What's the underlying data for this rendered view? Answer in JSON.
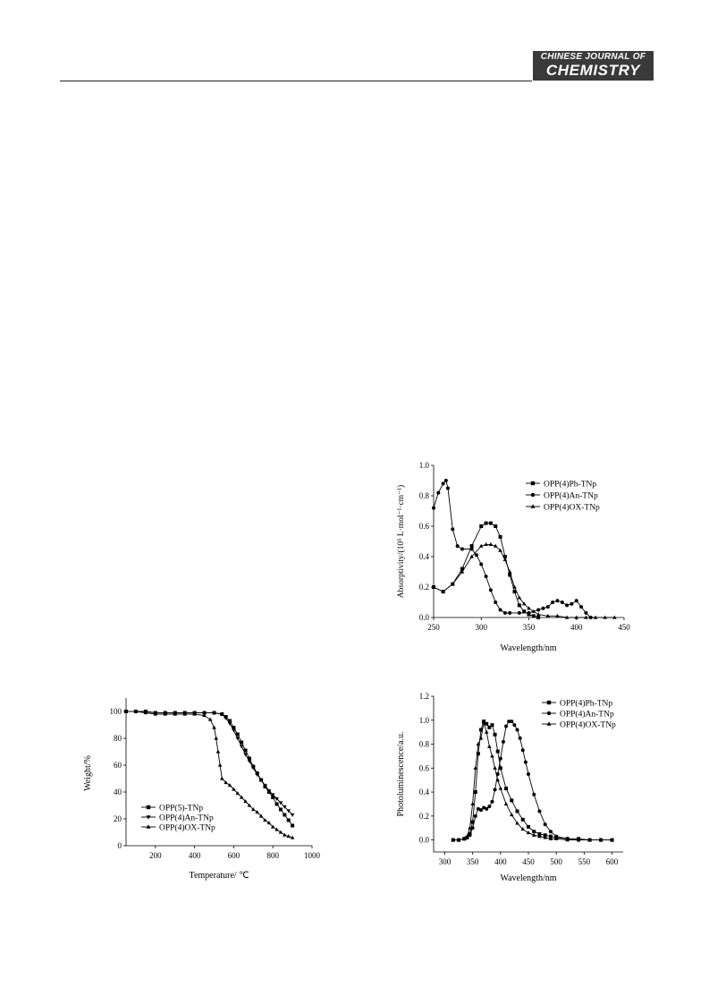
{
  "header": {
    "journal_line1": "CHINESE JOURNAL OF",
    "journal_line2": "CHEMISTRY"
  },
  "chart_data": [
    {
      "type": "line",
      "xlabel": "Wavelength/nm",
      "ylabel": "Absorptivity/(10⁵ L·mol⁻¹·cm⁻¹)",
      "xlim": [
        250,
        450
      ],
      "ylim": [
        0,
        1.0
      ],
      "xticks": [
        "250",
        "300",
        "350",
        "400",
        "450"
      ],
      "yticks": [
        "0.0",
        "0.2",
        "0.4",
        "0.6",
        "0.8",
        "1.0"
      ],
      "legend_position": "top-right",
      "series": [
        {
          "name": "OPP(4)Ph-TNp",
          "marker": "square",
          "x": [
            250,
            260,
            270,
            280,
            290,
            300,
            305,
            310,
            315,
            320,
            325,
            330,
            335,
            340,
            345,
            350,
            355,
            360
          ],
          "y": [
            0.2,
            0.17,
            0.22,
            0.32,
            0.47,
            0.6,
            0.62,
            0.62,
            0.6,
            0.53,
            0.4,
            0.28,
            0.17,
            0.08,
            0.04,
            0.02,
            0.01,
            0.0
          ]
        },
        {
          "name": "OPP(4)An-TNp",
          "marker": "circle",
          "x": [
            250,
            255,
            260,
            263,
            265,
            270,
            275,
            280,
            290,
            295,
            300,
            305,
            310,
            315,
            320,
            325,
            330,
            340,
            350,
            360,
            365,
            370,
            375,
            380,
            385,
            390,
            395,
            400,
            405,
            410,
            415
          ],
          "y": [
            0.72,
            0.82,
            0.88,
            0.9,
            0.85,
            0.58,
            0.47,
            0.45,
            0.45,
            0.41,
            0.35,
            0.27,
            0.18,
            0.1,
            0.05,
            0.03,
            0.03,
            0.03,
            0.03,
            0.05,
            0.06,
            0.07,
            0.1,
            0.11,
            0.1,
            0.08,
            0.09,
            0.11,
            0.07,
            0.03,
            0.0
          ]
        },
        {
          "name": "OPP(4)OX-TNp",
          "marker": "triangle",
          "x": [
            250,
            260,
            270,
            280,
            290,
            300,
            305,
            310,
            315,
            320,
            325,
            330,
            335,
            340,
            345,
            350,
            355,
            360,
            370,
            380,
            390,
            400,
            410,
            420,
            430,
            440
          ],
          "y": [
            0.2,
            0.17,
            0.22,
            0.3,
            0.4,
            0.47,
            0.48,
            0.48,
            0.47,
            0.44,
            0.38,
            0.3,
            0.2,
            0.13,
            0.09,
            0.06,
            0.04,
            0.02,
            0.01,
            0.01,
            0.0,
            0.0,
            0.0,
            0.0,
            0.0,
            0.0
          ]
        }
      ]
    },
    {
      "type": "line",
      "xlabel": "Temperature/ ℃",
      "ylabel": "Weight/%",
      "xlim": [
        50,
        1000
      ],
      "ylim": [
        0,
        110
      ],
      "xticks": [
        "200",
        "400",
        "600",
        "800",
        "1000"
      ],
      "yticks": [
        "0",
        "20",
        "40",
        "60",
        "80",
        "100"
      ],
      "legend_position": "bottom-left",
      "series": [
        {
          "name": "OPP(5)-TNp",
          "marker": "square",
          "x": [
            50,
            100,
            150,
            200,
            250,
            300,
            350,
            400,
            450,
            500,
            540,
            560,
            580,
            600,
            620,
            640,
            660,
            680,
            700,
            720,
            740,
            760,
            780,
            800,
            820,
            840,
            860,
            880,
            900
          ],
          "y": [
            100,
            100,
            100,
            99,
            99,
            99,
            99,
            99,
            99,
            99,
            98,
            96,
            93,
            88,
            83,
            77,
            71,
            65,
            59,
            54,
            49,
            44,
            40,
            36,
            31,
            27,
            23,
            19,
            15
          ]
        },
        {
          "name": "OPP(4)An-TNp",
          "marker": "triangle-down",
          "x": [
            50,
            100,
            150,
            200,
            250,
            300,
            350,
            400,
            450,
            500,
            540,
            560,
            580,
            600,
            620,
            640,
            660,
            680,
            700,
            720,
            740,
            760,
            780,
            800,
            820,
            840,
            860,
            880,
            900
          ],
          "y": [
            100,
            100,
            100,
            99,
            99,
            99,
            99,
            99,
            99,
            99,
            98,
            95,
            91,
            86,
            80,
            74,
            68,
            63,
            58,
            53,
            49,
            45,
            41,
            38,
            35,
            32,
            29,
            26,
            23
          ]
        },
        {
          "name": "OPP(4)OX-TNp",
          "marker": "triangle",
          "x": [
            50,
            100,
            150,
            200,
            250,
            300,
            350,
            400,
            450,
            480,
            500,
            510,
            520,
            530,
            540,
            560,
            580,
            600,
            620,
            640,
            660,
            680,
            700,
            720,
            740,
            760,
            780,
            800,
            820,
            840,
            860,
            880,
            900
          ],
          "y": [
            100,
            100,
            99,
            98,
            98,
            98,
            98,
            98,
            97,
            94,
            88,
            80,
            70,
            60,
            50,
            47,
            45,
            42,
            39,
            36,
            33,
            30,
            27,
            25,
            22,
            19,
            17,
            14,
            12,
            10,
            8,
            7,
            6
          ]
        }
      ]
    },
    {
      "type": "line",
      "xlabel": "Wavelength/nm",
      "ylabel": "Photoluminescence/a.u.",
      "xlim": [
        280,
        620
      ],
      "ylim": [
        -0.1,
        1.2
      ],
      "xticks": [
        "300",
        "350",
        "400",
        "450",
        "500",
        "550",
        "600"
      ],
      "yticks": [
        "0.0",
        "0.2",
        "0.4",
        "0.6",
        "0.8",
        "1.0",
        "1.2"
      ],
      "legend_position": "top-right",
      "series": [
        {
          "name": "OPP(4)Ph-TNp",
          "marker": "square",
          "x": [
            315,
            325,
            335,
            340,
            345,
            350,
            355,
            360,
            365,
            370,
            375,
            380,
            385,
            390,
            395,
            400,
            410,
            420,
            430,
            440,
            450,
            460,
            470,
            480,
            490,
            500,
            520,
            540,
            560,
            580,
            600
          ],
          "y": [
            0.0,
            0.0,
            0.01,
            0.02,
            0.05,
            0.15,
            0.4,
            0.72,
            0.92,
            0.99,
            0.97,
            0.94,
            0.96,
            0.88,
            0.74,
            0.6,
            0.43,
            0.33,
            0.24,
            0.17,
            0.11,
            0.07,
            0.05,
            0.04,
            0.03,
            0.02,
            0.01,
            0.01,
            0.0,
            0.0,
            0.0
          ]
        },
        {
          "name": "OPP(4)An-TNp",
          "marker": "circle",
          "x": [
            315,
            325,
            335,
            345,
            350,
            355,
            360,
            365,
            370,
            375,
            380,
            385,
            390,
            395,
            400,
            405,
            410,
            415,
            420,
            425,
            430,
            435,
            440,
            445,
            450,
            460,
            470,
            480,
            490,
            500,
            520,
            540,
            560,
            580,
            600
          ],
          "y": [
            0.0,
            0.0,
            0.01,
            0.04,
            0.1,
            0.2,
            0.26,
            0.25,
            0.27,
            0.26,
            0.28,
            0.32,
            0.42,
            0.55,
            0.68,
            0.82,
            0.95,
            0.99,
            0.99,
            0.96,
            0.92,
            0.85,
            0.75,
            0.65,
            0.55,
            0.38,
            0.24,
            0.13,
            0.07,
            0.03,
            0.01,
            0.0,
            0.0,
            0.0,
            0.0
          ]
        },
        {
          "name": "OPP(4)OX-TNp",
          "marker": "triangle",
          "x": [
            315,
            325,
            335,
            340,
            345,
            350,
            355,
            360,
            365,
            370,
            375,
            380,
            385,
            390,
            395,
            400,
            410,
            420,
            430,
            440,
            450,
            460,
            470,
            480,
            490,
            500,
            520,
            540,
            560,
            580,
            600
          ],
          "y": [
            0.0,
            0.0,
            0.01,
            0.03,
            0.1,
            0.3,
            0.6,
            0.8,
            0.85,
            0.98,
            0.9,
            0.78,
            0.7,
            0.6,
            0.5,
            0.43,
            0.3,
            0.21,
            0.14,
            0.09,
            0.06,
            0.04,
            0.03,
            0.02,
            0.01,
            0.01,
            0.0,
            0.0,
            0.0,
            0.0,
            0.0
          ]
        }
      ]
    }
  ]
}
